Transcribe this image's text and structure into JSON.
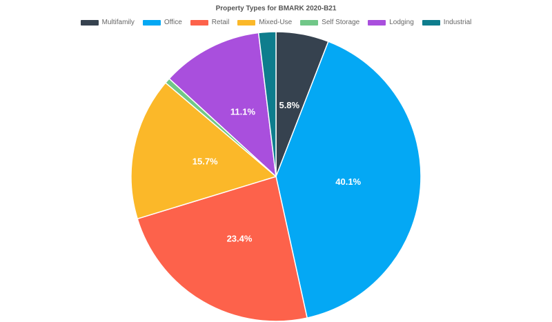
{
  "chart_data": {
    "type": "pie",
    "title": "Property Types for BMARK 2020-B21",
    "legend_position": "top",
    "series": [
      {
        "name": "Multifamily",
        "value": 5.8,
        "label": "5.8%",
        "color": "#36424f"
      },
      {
        "name": "Office",
        "value": 40.1,
        "label": "40.1%",
        "color": "#04a8f4"
      },
      {
        "name": "Retail",
        "value": 23.4,
        "label": "23.4%",
        "color": "#fd624b"
      },
      {
        "name": "Mixed-Use",
        "value": 15.7,
        "label": "15.7%",
        "color": "#fbb829"
      },
      {
        "name": "Self Storage",
        "value": 0.6,
        "label": "",
        "color": "#71c788"
      },
      {
        "name": "Lodging",
        "value": 11.1,
        "label": "11.1%",
        "color": "#a94fdd"
      },
      {
        "name": "Industrial",
        "value": 1.9,
        "label": "",
        "color": "#0e7d8d"
      }
    ]
  }
}
